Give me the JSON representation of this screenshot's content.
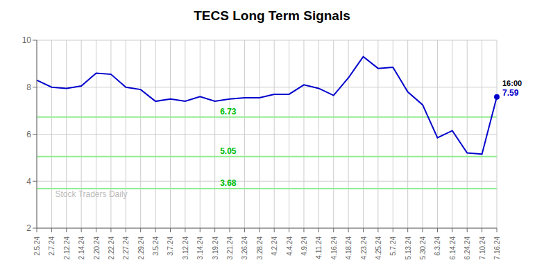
{
  "chart_data": {
    "type": "line",
    "title": "TECS Long Term Signals",
    "watermark": "Stock Traders Daily",
    "categories": [
      "2.5.24",
      "2.7.24",
      "2.12.24",
      "2.14.24",
      "2.20.24",
      "2.22.24",
      "2.27.24",
      "2.29.24",
      "3.5.24",
      "3.7.24",
      "3.12.24",
      "3.14.24",
      "3.19.24",
      "3.21.24",
      "3.26.24",
      "3.28.24",
      "4.2.24",
      "4.4.24",
      "4.9.24",
      "4.11.24",
      "4.16.24",
      "4.18.24",
      "4.23.24",
      "4.25.24",
      "5.7.24",
      "5.13.24",
      "5.30.24",
      "6.3.24",
      "6.14.24",
      "6.24.24",
      "7.10.24",
      "7.16.24"
    ],
    "values": [
      8.3,
      8.0,
      7.95,
      8.05,
      8.6,
      8.55,
      8.0,
      7.9,
      7.4,
      7.5,
      7.4,
      7.6,
      7.4,
      7.5,
      7.55,
      7.55,
      7.7,
      7.7,
      8.1,
      7.95,
      7.65,
      8.4,
      9.3,
      8.8,
      8.85,
      7.8,
      7.25,
      5.85,
      6.15,
      5.2,
      5.15,
      7.59
    ],
    "color": "#0000cc",
    "ylim": [
      2,
      10
    ],
    "yticks": [
      2,
      4,
      6,
      8,
      10
    ],
    "grid": true,
    "reference_lines": [
      {
        "value": 6.73,
        "label": "6.73",
        "color": "#90EE90"
      },
      {
        "value": 5.05,
        "label": "5.05",
        "color": "#90EE90"
      },
      {
        "value": 3.68,
        "label": "3.68",
        "color": "#90EE90"
      }
    ],
    "annotations": [
      "16:00",
      "7.59"
    ]
  }
}
